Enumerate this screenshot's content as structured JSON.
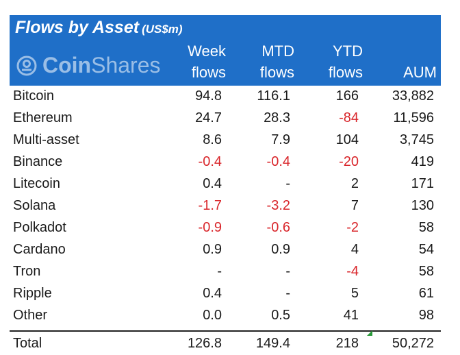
{
  "header": {
    "title": "Flows by Asset",
    "unit": "(US$m)",
    "logo_text_a": "Coin",
    "logo_text_b": "Shares",
    "logo_icon": "coinshares-logo-icon",
    "col_week_1": "Week",
    "col_week_2": "flows",
    "col_mtd_1": "MTD",
    "col_mtd_2": "flows",
    "col_ytd_1": "YTD",
    "col_ytd_2": "flows",
    "col_aum": "AUM"
  },
  "colors": {
    "header_bg": "#1f6fc8",
    "negative": "#d9262b"
  },
  "rows": [
    {
      "name": "Bitcoin",
      "week": "94.8",
      "mtd": "116.1",
      "ytd": "166",
      "aum": "33,882"
    },
    {
      "name": "Ethereum",
      "week": "24.7",
      "mtd": "28.3",
      "ytd": "-84",
      "aum": "11,596"
    },
    {
      "name": "Multi-asset",
      "week": "8.6",
      "mtd": "7.9",
      "ytd": "104",
      "aum": "3,745"
    },
    {
      "name": "Binance",
      "week": "-0.4",
      "mtd": "-0.4",
      "ytd": "-20",
      "aum": "419"
    },
    {
      "name": "Litecoin",
      "week": "0.4",
      "mtd": "-",
      "ytd": "2",
      "aum": "171"
    },
    {
      "name": "Solana",
      "week": "-1.7",
      "mtd": "-3.2",
      "ytd": "7",
      "aum": "130"
    },
    {
      "name": "Polkadot",
      "week": "-0.9",
      "mtd": "-0.6",
      "ytd": "-2",
      "aum": "58"
    },
    {
      "name": "Cardano",
      "week": "0.9",
      "mtd": "0.9",
      "ytd": "4",
      "aum": "54"
    },
    {
      "name": "Tron",
      "week": "-",
      "mtd": "-",
      "ytd": "-4",
      "aum": "58"
    },
    {
      "name": "Ripple",
      "week": "0.4",
      "mtd": "-",
      "ytd": "5",
      "aum": "61"
    },
    {
      "name": "Other",
      "week": "0.0",
      "mtd": "0.5",
      "ytd": "41",
      "aum": "98"
    }
  ],
  "total": {
    "name": "Total",
    "week": "126.8",
    "mtd": "149.4",
    "ytd": "218",
    "aum": "50,272"
  }
}
